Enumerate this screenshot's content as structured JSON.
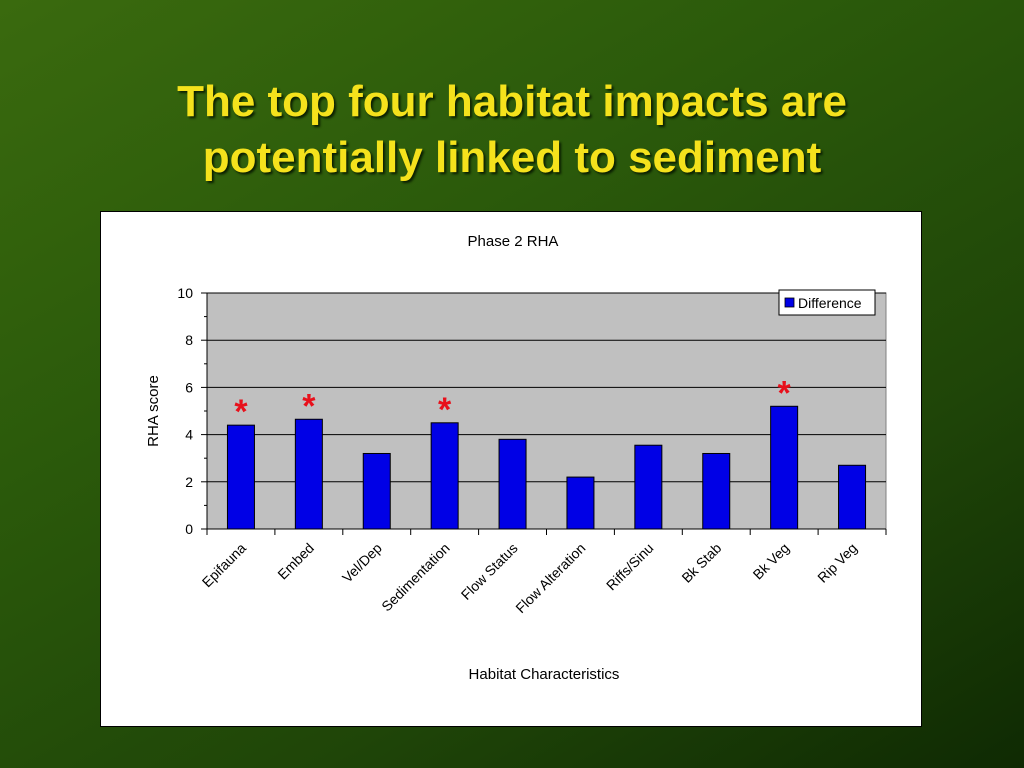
{
  "slide": {
    "title_line1": "The top four habitat impacts are",
    "title_line2": "potentially linked to sediment"
  },
  "colors": {
    "title": "#f5e21c",
    "bar": "#0000e6",
    "plot_bg": "#c0c0c0",
    "star": "#e8101b"
  },
  "chart_data": {
    "type": "bar",
    "title": "Phase 2 RHA",
    "xlabel": "Habitat Characteristics",
    "ylabel": "RHA score",
    "ylim": [
      0,
      10
    ],
    "yticks": [
      0,
      2,
      4,
      6,
      8,
      10
    ],
    "grid": true,
    "legend_position": "top-right",
    "categories": [
      "Epifauna",
      "Embed",
      "Vel/Dep",
      "Sedimentation",
      "Flow Status",
      "Flow Alteration",
      "Riffs/Sinu",
      "Bk Stab",
      "Bk Veg",
      "Rip Veg"
    ],
    "series": [
      {
        "name": "Difference",
        "values": [
          4.4,
          4.65,
          3.2,
          4.5,
          3.8,
          2.2,
          3.55,
          3.2,
          5.2,
          2.7
        ]
      }
    ],
    "annotations": [
      {
        "category": "Epifauna",
        "text": "*"
      },
      {
        "category": "Embed",
        "text": "*"
      },
      {
        "category": "Sedimentation",
        "text": "*"
      },
      {
        "category": "Bk Veg",
        "text": "*"
      }
    ]
  }
}
